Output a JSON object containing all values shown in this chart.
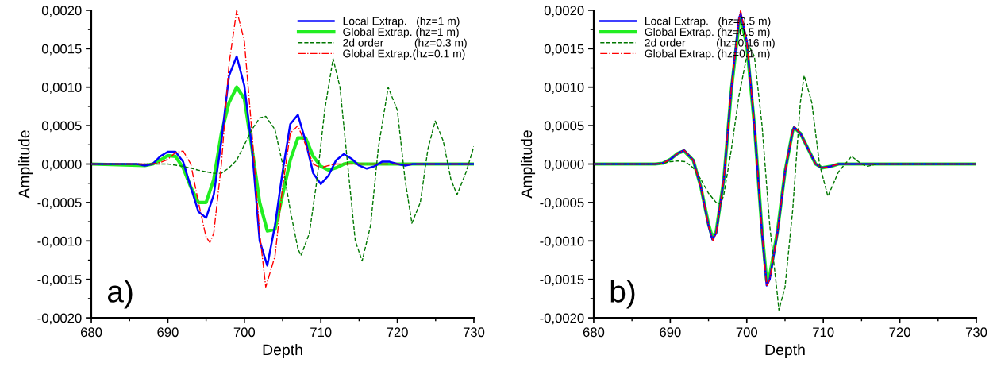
{
  "chart_data": [
    {
      "type": "line",
      "xlabel": "Depth",
      "ylabel": "Amplitude",
      "annotations": [
        "a)"
      ],
      "legend": "top right",
      "grid": false,
      "xlim": [
        680,
        730
      ],
      "xticks": [
        680,
        690,
        700,
        710,
        720,
        730
      ],
      "ylim": [
        -0.002,
        0.002
      ],
      "yticks": [
        {
          "value": -0.002,
          "label": "-0,0020"
        },
        {
          "value": -0.0015,
          "label": "-0,0015"
        },
        {
          "value": -0.001,
          "label": "-0,0010"
        },
        {
          "value": -0.0005,
          "label": "-0,0005"
        },
        {
          "value": 0,
          "label": "0,0000"
        },
        {
          "value": 0.0005,
          "label": "0,0005"
        },
        {
          "value": 0.001,
          "label": "0,0010"
        },
        {
          "value": 0.0015,
          "label": "0,0015"
        },
        {
          "value": 0.002,
          "label": "0,0020"
        }
      ],
      "series": [
        {
          "name": "Local Extrap.   (hz=1 m)",
          "color": "#0000ff",
          "line_style": "solid",
          "x": [
            680,
            684,
            686,
            687,
            688,
            689,
            690,
            691,
            692,
            693,
            694,
            695,
            696,
            697,
            698,
            699,
            700,
            701,
            702,
            703,
            704,
            705,
            706,
            707,
            708,
            709,
            710,
            711,
            712,
            713,
            714,
            715,
            716,
            717,
            718,
            719,
            720,
            721,
            722,
            730
          ],
          "values": [
            0,
            0,
            0,
            -2e-05,
            0,
            0.0001,
            0.00016,
            0.00016,
            3e-05,
            -0.0003,
            -0.00062,
            -0.0007,
            -0.0004,
            0.0003,
            0.00115,
            0.0014,
            0.00102,
            0.0002,
            -0.001,
            -0.00132,
            -0.0008,
            -0.0001,
            0.00052,
            0.00064,
            0.0003,
            -0.00012,
            -0.00026,
            -0.00015,
            5e-05,
            0.00013,
            7e-05,
            -2e-05,
            -6e-05,
            -3e-05,
            3e-05,
            3e-05,
            0,
            -2e-05,
            0,
            0
          ]
        },
        {
          "name": "Global Extrap. (hz=1 m)",
          "color": "#22ee22",
          "line_style": "solid",
          "x": [
            680,
            687,
            688,
            689,
            690,
            691,
            692,
            693,
            694,
            695,
            696,
            697,
            698,
            699,
            700,
            701,
            702,
            703,
            704,
            705,
            706,
            707,
            708,
            709,
            710,
            711,
            712,
            713,
            714,
            715,
            730
          ],
          "values": [
            0,
            -2e-05,
            0,
            5e-05,
            0.00011,
            0.0001,
            -5e-05,
            -0.0003,
            -0.0005,
            -0.0005,
            -0.0002,
            0.0004,
            0.0008,
            0.001,
            0.00085,
            0.0002,
            -0.0005,
            -0.00087,
            -0.00085,
            -0.0004,
            5e-05,
            0.00034,
            0.00034,
            0.0001,
            -3e-05,
            -8e-05,
            -5e-05,
            0,
            2e-05,
            0,
            0
          ]
        },
        {
          "name": "2d order          (hz=0.3 m)",
          "color": "#007700",
          "line_style": "dashed",
          "x": [
            680,
            688,
            690,
            692,
            694,
            696,
            697,
            698,
            699,
            700,
            701,
            702,
            702.8,
            704,
            705,
            706,
            707,
            707.4,
            708.5,
            709.5,
            710.5,
            711.6,
            712.5,
            713.5,
            714.5,
            715.4,
            716.5,
            717.5,
            718.8,
            720,
            721,
            721.9,
            723,
            724,
            724.95,
            726,
            727,
            727.8,
            729,
            730
          ],
          "values": [
            0,
            0,
            0,
            -3e-05,
            -8e-05,
            -0.00012,
            -0.00012,
            -5e-05,
            5e-05,
            0.00025,
            0.00045,
            0.0006,
            0.00062,
            0.00045,
            0,
            -0.0006,
            -0.0011,
            -0.00119,
            -0.0009,
            -0.0002,
            0.0007,
            0.00137,
            0.001,
            0,
            -0.001,
            -0.00126,
            -0.0008,
            0.0002,
            0.001,
            0.0007,
            -0.0002,
            -0.00077,
            -0.0005,
            0.0002,
            0.00056,
            0.0003,
            -0.0002,
            -0.0004,
            -0.0001,
            0.00023
          ]
        },
        {
          "name": "Global Extrap.(hz=0.1 m)",
          "color": "#ff0000",
          "line_style": "dashdot",
          "x": [
            680,
            688,
            689,
            690,
            691,
            692,
            693,
            694,
            695,
            695.5,
            696,
            697,
            698,
            699,
            700,
            701,
            702,
            702.8,
            704,
            705,
            706,
            707,
            708,
            709,
            710,
            711,
            712,
            730
          ],
          "values": [
            0,
            0,
            2e-05,
            6e-05,
            0.00015,
            0.00017,
            0,
            -0.0005,
            -0.00095,
            -0.00102,
            -0.0009,
            0,
            0.0013,
            0.002,
            0.0016,
            0.0004,
            -0.0009,
            -0.0016,
            -0.0012,
            -0.0003,
            0.0004,
            0.0005,
            0.00025,
            0,
            -5e-05,
            -2e-05,
            0,
            0
          ]
        }
      ]
    },
    {
      "type": "line",
      "xlabel": "Depth",
      "ylabel": "Amplitude",
      "annotations": [
        "b)"
      ],
      "legend": "top left",
      "grid": false,
      "xlim": [
        680,
        730
      ],
      "xticks": [
        680,
        690,
        700,
        710,
        720,
        730
      ],
      "ylim": [
        -0.002,
        0.002
      ],
      "yticks": [
        {
          "value": -0.002,
          "label": "-0,0020"
        },
        {
          "value": -0.0015,
          "label": "-0,0015"
        },
        {
          "value": -0.001,
          "label": "-0,0010"
        },
        {
          "value": -0.0005,
          "label": "-0,0005"
        },
        {
          "value": 0,
          "label": "0,0000"
        },
        {
          "value": 0.0005,
          "label": "0,0005"
        },
        {
          "value": 0.001,
          "label": "0,0010"
        },
        {
          "value": 0.0015,
          "label": "0,0015"
        },
        {
          "value": 0.002,
          "label": "0,0020"
        }
      ],
      "series": [
        {
          "name": "Local Extrap.   (hz=0.5 m)",
          "color": "#0000ff",
          "line_style": "solid",
          "x": [
            680,
            688,
            689,
            690,
            691,
            691.8,
            693,
            694,
            695,
            695.5,
            696,
            697,
            698,
            699,
            699.2,
            700,
            701,
            702,
            702.6,
            703,
            704,
            705,
            706,
            706.2,
            707,
            708,
            709,
            709.8,
            711,
            712,
            730
          ],
          "values": [
            0,
            0,
            1e-05,
            6e-05,
            0.00014,
            0.00018,
            5e-05,
            -0.0003,
            -0.0008,
            -0.00098,
            -0.0009,
            -0.0002,
            0.001,
            0.0019,
            0.00196,
            0.0016,
            0.0005,
            -0.0009,
            -0.00158,
            -0.0015,
            -0.0009,
            -0.0001,
            0.00043,
            0.00048,
            0.0004,
            0.0002,
            0,
            -5e-05,
            -3e-05,
            0,
            0
          ]
        },
        {
          "name": "Global Extrap. (hz=0.5 m)",
          "color": "#22ee22",
          "line_style": "solid",
          "x": [
            680,
            688,
            689,
            690,
            691,
            691.8,
            693,
            694,
            695,
            695.5,
            696,
            697,
            698,
            699,
            699.2,
            700,
            701,
            702,
            702.6,
            703,
            704,
            705,
            706,
            706.2,
            707,
            708,
            709,
            709.8,
            711,
            712,
            730
          ],
          "values": [
            0,
            0,
            1e-05,
            6e-05,
            0.00014,
            0.00017,
            5e-05,
            -0.0003,
            -0.00078,
            -0.00095,
            -0.00088,
            -0.0002,
            0.00098,
            0.00185,
            0.0019,
            0.00155,
            0.0005,
            -0.00088,
            -0.00152,
            -0.00145,
            -0.00088,
            -0.0001,
            0.00043,
            0.00047,
            0.0004,
            0.0002,
            0,
            -5e-05,
            -3e-05,
            0,
            0
          ]
        },
        {
          "name": "2d order          (hz=0.16 m)",
          "color": "#007700",
          "line_style": "dashed",
          "x": [
            680,
            688,
            689,
            690,
            691,
            692,
            693,
            694,
            695,
            696,
            696.6,
            697,
            698,
            699,
            700,
            700.3,
            701,
            702,
            703,
            704,
            704.2,
            705,
            706,
            707,
            707.5,
            708.5,
            709.5,
            710.6,
            712,
            713.7,
            715,
            715.8,
            717,
            730
          ],
          "values": [
            0,
            0,
            1e-05,
            3e-05,
            4e-05,
            3e-05,
            -5e-05,
            -0.0002,
            -0.00038,
            -0.0005,
            -0.00052,
            -0.0004,
            0.0002,
            0.0009,
            0.0014,
            0.00153,
            0.0014,
            0.0005,
            -0.0008,
            -0.0017,
            -0.0019,
            -0.0016,
            -0.0006,
            0.0008,
            0.00115,
            0.0008,
            0,
            -0.00042,
            -0.0001,
            0.0001,
            0,
            -3e-05,
            0,
            0
          ]
        },
        {
          "name": "Global Extrap. (hz=0.1 m)",
          "color": "#ff0000",
          "line_style": "dashdot",
          "x": [
            680,
            688,
            689,
            690,
            691,
            691.8,
            693,
            694,
            695,
            695.6,
            696,
            697,
            698,
            699,
            699.2,
            700,
            701,
            702,
            702.6,
            703,
            704,
            705,
            706,
            706.2,
            707,
            708,
            709,
            709.8,
            711,
            712,
            730
          ],
          "values": [
            0,
            0,
            1e-05,
            6e-05,
            0.00014,
            0.00018,
            5e-05,
            -0.0003,
            -0.0008,
            -0.001,
            -0.0009,
            -0.0002,
            0.001,
            0.0019,
            0.002,
            0.0016,
            0.0005,
            -0.0009,
            -0.00159,
            -0.0015,
            -0.0009,
            -0.0001,
            0.00043,
            0.00048,
            0.0004,
            0.0002,
            0,
            -5e-05,
            -3e-05,
            0,
            0
          ]
        }
      ]
    }
  ]
}
